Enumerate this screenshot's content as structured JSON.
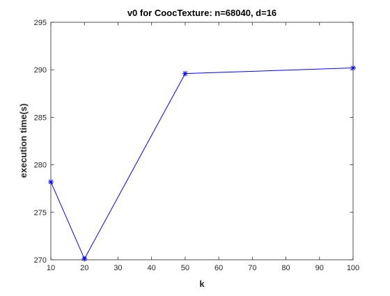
{
  "chart_data": {
    "type": "line",
    "title": "v0 for CoocTexture: n=68040, d=16",
    "xlabel": "k",
    "ylabel": "execution time(s)",
    "xlim": [
      10,
      100
    ],
    "ylim": [
      270,
      295
    ],
    "xticks": [
      10,
      20,
      30,
      40,
      50,
      60,
      70,
      80,
      90,
      100
    ],
    "yticks": [
      270,
      275,
      280,
      285,
      290,
      295
    ],
    "grid": false,
    "series": [
      {
        "color": "#0000ff",
        "marker": "asterisk",
        "x": [
          10,
          20,
          50,
          100
        ],
        "y": [
          278.2,
          270.1,
          289.6,
          290.2
        ]
      }
    ]
  }
}
